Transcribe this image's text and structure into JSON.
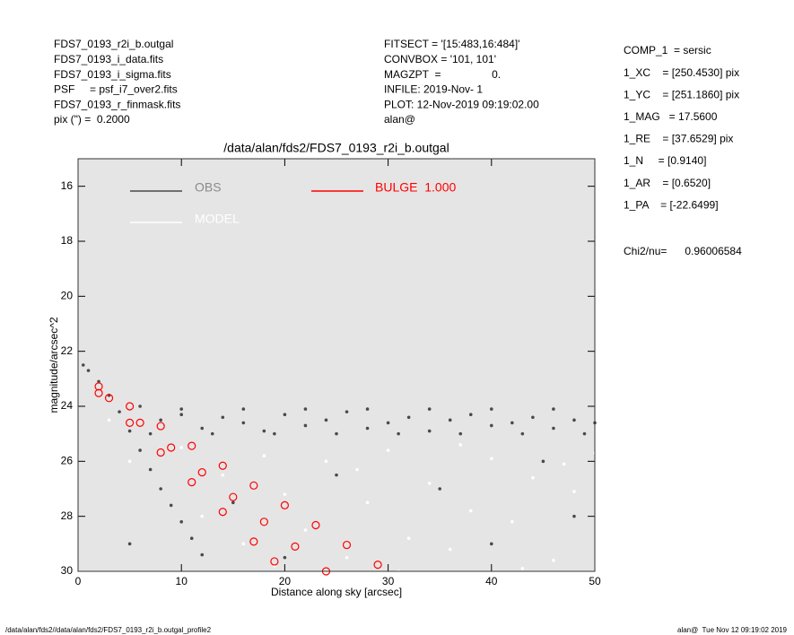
{
  "header": {
    "left": [
      "FDS7_0193_r2i_b.outgal",
      "FDS7_0193_i_data.fits",
      "FDS7_0193_i_sigma.fits",
      "PSF     = psf_i7_over2.fits",
      "FDS7_0193_r_finmask.fits",
      "pix (\") =  0.2000"
    ],
    "middle": [
      "FITSECT = '[15:483,16:484]'",
      "CONVBOX = '101, 101'",
      "MAGZPT  =                 0.",
      "INFILE: 2019-Nov- 1",
      "PLOT: 12-Nov-2019 09:19:02.00",
      "alan@"
    ],
    "right": [
      "COMP_1  = sersic",
      "1_XC    = [250.4530] pix",
      "1_YC    = [251.1860] pix",
      "1_MAG   = 17.5600",
      "1_RE    = [37.6529] pix",
      "1_N     = [0.9140]",
      "1_AR    = [0.6520]",
      "1_PA    = [-22.6499]"
    ],
    "chi2": "Chi2/nu=      0.96006584"
  },
  "footer": {
    "left": "/data/alan/fds2//data/alan/fds2/FDS7_0193_r2i_b.outgal_profile2",
    "right": "alan@  Tue Nov 12 09:19:02 2019"
  },
  "chart_data": {
    "type": "scatter",
    "title": "/data/alan/fds2/FDS7_0193_r2i_b.outgal",
    "x_label": "Distance along sky [arcsec]",
    "y_label": "magnitude/arcsec^2",
    "xlim": [
      0,
      50
    ],
    "xticks": [
      0,
      10,
      20,
      30,
      40,
      50
    ],
    "ylim": [
      30,
      15
    ],
    "yticks": [
      16,
      18,
      20,
      22,
      24,
      26,
      28,
      30
    ],
    "background": "#e5e5e5",
    "series": [
      {
        "name": "MODEL",
        "color": "#ffffff",
        "x": [
          3,
          5,
          8,
          10,
          12,
          14,
          16,
          18,
          20,
          22,
          24,
          26,
          28,
          30,
          32,
          34,
          36,
          38,
          40,
          42,
          44,
          46,
          48,
          50,
          31,
          27,
          37,
          43,
          47,
          19
        ],
        "values": [
          24.5,
          26,
          27,
          25.5,
          28,
          26.5,
          29,
          25.8,
          27.2,
          28.5,
          26,
          29.5,
          27.5,
          25.6,
          28.8,
          26.8,
          29.2,
          27.8,
          25.9,
          28.2,
          26.6,
          29.6,
          27.1,
          25.7,
          30,
          26.3,
          25.4,
          29.9,
          26.1,
          29.8
        ]
      },
      {
        "name": "OBS",
        "color": "#4a4a4a",
        "x": [
          0.5,
          1,
          2,
          3,
          4,
          5,
          6,
          7,
          8,
          9,
          10,
          11,
          12,
          15,
          25,
          35,
          45,
          48,
          5,
          20,
          40,
          6,
          8,
          10,
          12,
          14,
          16,
          18,
          20,
          22,
          24,
          26,
          28,
          30,
          32,
          34,
          36,
          38,
          40,
          42,
          44,
          46,
          48,
          50,
          7,
          10,
          13,
          16,
          19,
          22,
          25,
          28,
          31,
          34,
          37,
          40,
          43,
          46,
          49
        ],
        "values": [
          22.5,
          22.7,
          23.1,
          23.6,
          24.2,
          24.9,
          25.6,
          26.3,
          27,
          27.6,
          28.2,
          28.8,
          29.4,
          27.5,
          26.5,
          27,
          26,
          28,
          29,
          29.5,
          29,
          24,
          24.5,
          24.3,
          24.8,
          24.4,
          24.6,
          24.9,
          24.3,
          24.7,
          24.5,
          24.2,
          24.8,
          24.6,
          24.4,
          24.9,
          24.5,
          24.3,
          24.7,
          24.6,
          24.4,
          24.8,
          24.5,
          24.6,
          25,
          24.1,
          25,
          24.1,
          25,
          24.1,
          25,
          24.1,
          25,
          24.1,
          25,
          24.1,
          25,
          24.1,
          25
        ]
      },
      {
        "name": "BULGE  1.000",
        "color": "#ff0000",
        "x": [
          2,
          5,
          8,
          11,
          14,
          17,
          20,
          23,
          26,
          29,
          2,
          5,
          8,
          11,
          14,
          17,
          19,
          3,
          6,
          9,
          12,
          15,
          18,
          21,
          24
        ],
        "values": [
          23.28,
          24,
          24.72,
          25.44,
          26.16,
          26.88,
          27.6,
          28.32,
          29.04,
          29.76,
          23.52,
          24.6,
          25.68,
          26.76,
          27.84,
          28.92,
          29.64,
          23.7,
          24.6,
          25.5,
          26.4,
          27.3,
          28.2,
          29.1,
          30
        ]
      }
    ]
  }
}
